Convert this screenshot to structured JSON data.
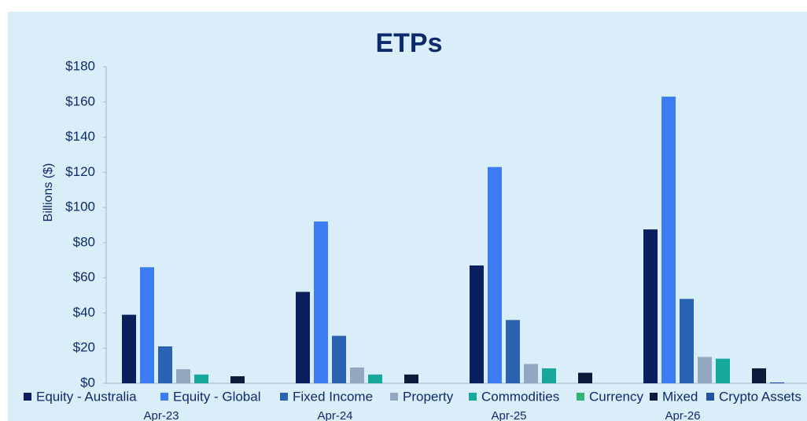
{
  "chart_data": {
    "type": "bar",
    "title": "ETPs",
    "y_label": "Billions ($)",
    "categories": [
      "Apr-23",
      "Apr-24",
      "Apr-25",
      "Apr-26"
    ],
    "series": [
      {
        "name": "Equity - Australia",
        "color": "#0b1f5e",
        "values": [
          39,
          52,
          67,
          87.5
        ]
      },
      {
        "name": "Equity - Global",
        "color": "#3b7cf2",
        "values": [
          66,
          92,
          123,
          163
        ]
      },
      {
        "name": "Fixed Income",
        "color": "#2a63b2",
        "values": [
          21,
          27,
          36,
          48
        ]
      },
      {
        "name": "Property",
        "color": "#93a8c0",
        "values": [
          8,
          9,
          11,
          15
        ]
      },
      {
        "name": "Commodities",
        "color": "#16a89b",
        "values": [
          5,
          5,
          8.5,
          14
        ]
      },
      {
        "name": "Currency",
        "color": "#2db573",
        "values": [
          0,
          0,
          0,
          0
        ]
      },
      {
        "name": "Mixed",
        "color": "#0c1a3c",
        "values": [
          4,
          5,
          6,
          8.5
        ]
      },
      {
        "name": "Crypto Assets",
        "color": "#2152a3",
        "values": [
          0,
          0,
          0,
          0.5
        ]
      }
    ],
    "ylim": [
      0,
      180
    ],
    "yticks": [
      {
        "value": 0,
        "label": "$0"
      },
      {
        "value": 20,
        "label": "$20"
      },
      {
        "value": 40,
        "label": "$40"
      },
      {
        "value": 60,
        "label": "$60"
      },
      {
        "value": 80,
        "label": "$80"
      },
      {
        "value": 100,
        "label": "$100"
      },
      {
        "value": 120,
        "label": "$120"
      },
      {
        "value": 140,
        "label": "$140"
      },
      {
        "value": 160,
        "label": "$160"
      },
      {
        "value": 180,
        "label": "$180"
      }
    ],
    "legend": "bottom"
  }
}
